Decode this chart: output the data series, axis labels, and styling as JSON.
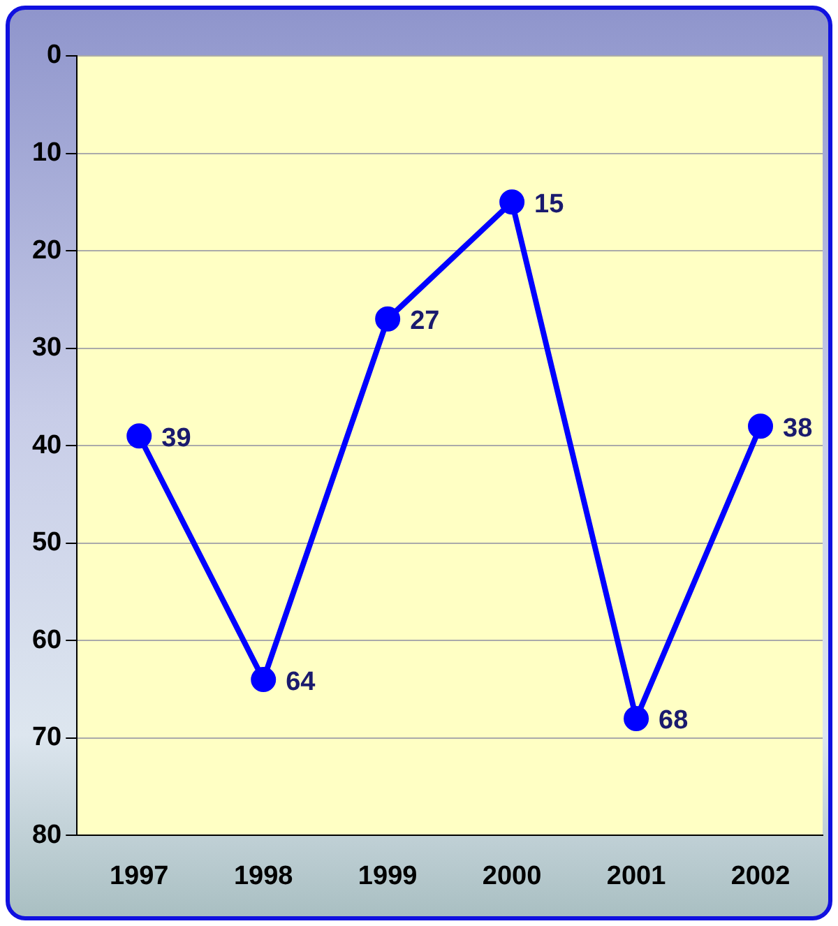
{
  "chart_data": {
    "type": "line",
    "categories": [
      "1997",
      "1998",
      "1999",
      "2000",
      "2001",
      "2002"
    ],
    "series": [
      {
        "color": "#0000ff",
        "values": [
          39,
          64,
          27,
          15,
          68,
          38
        ]
      }
    ],
    "ylim": [
      80,
      0
    ],
    "yticks": [
      0,
      10,
      20,
      30,
      40,
      50,
      60,
      70,
      80
    ],
    "grid": "y",
    "legend": false,
    "marker": "circle",
    "line_style": "solid",
    "data_labels": true
  }
}
